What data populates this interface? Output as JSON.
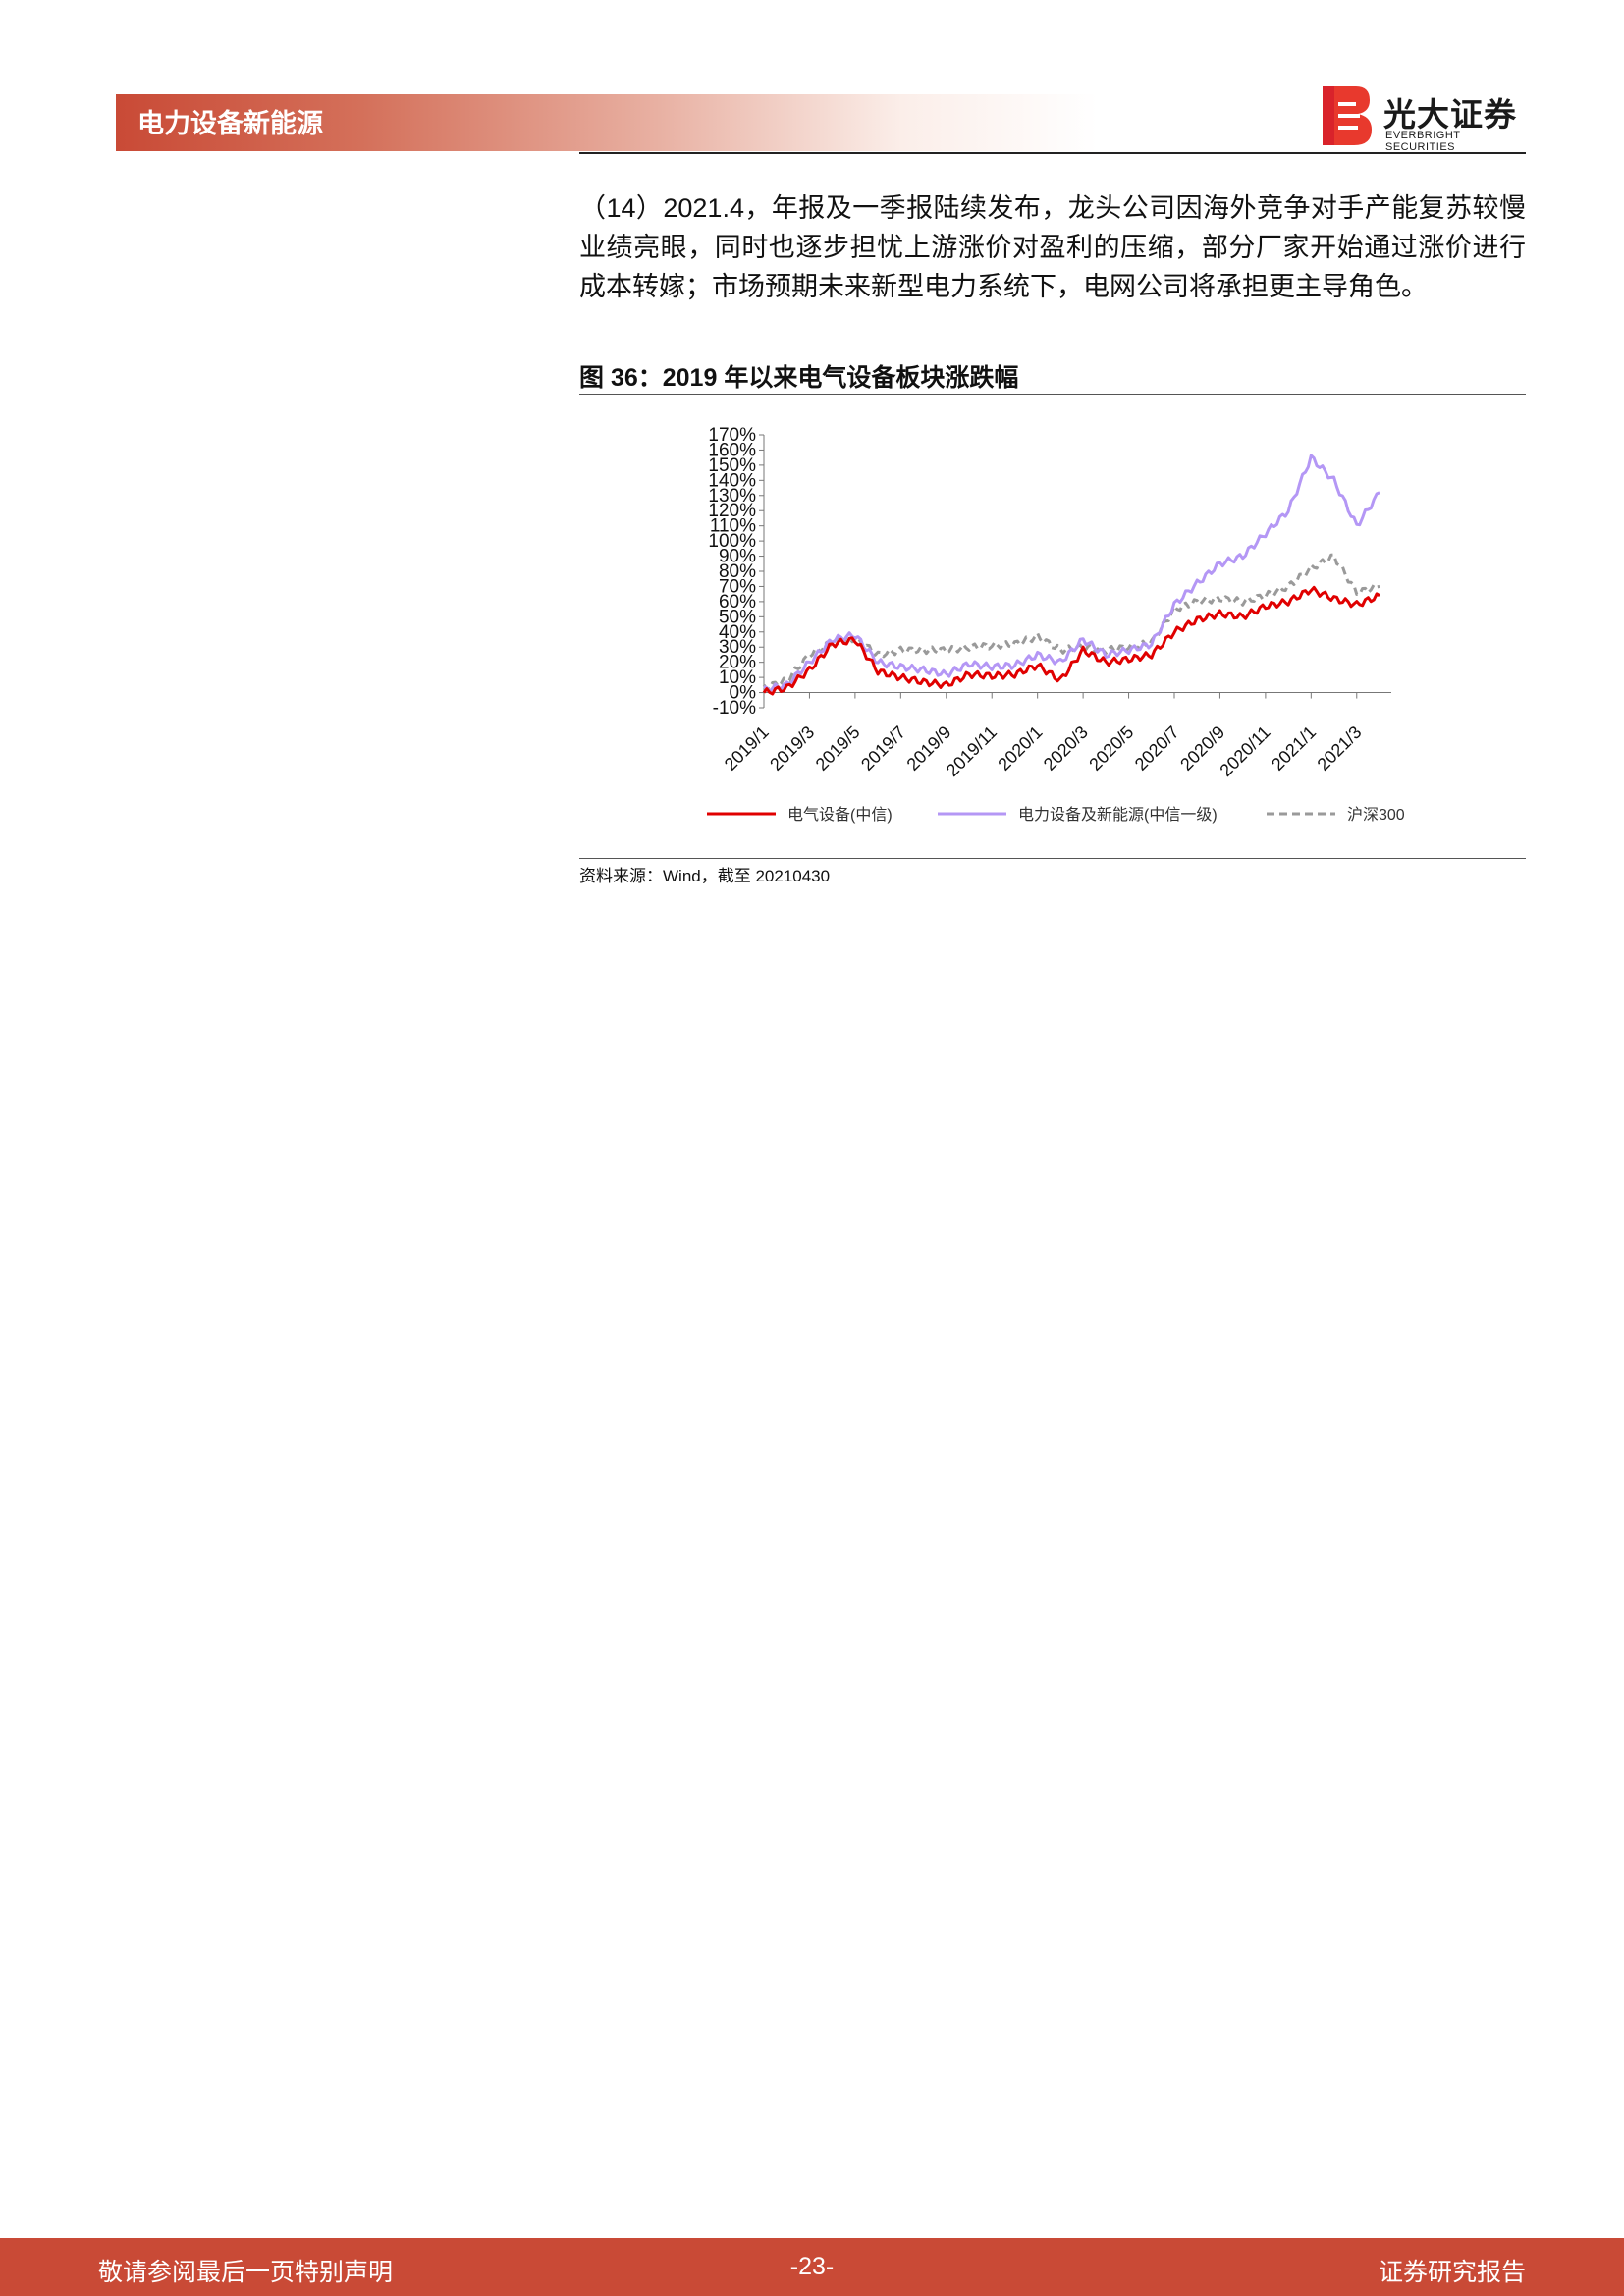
{
  "header": {
    "section_title": "电力设备新能源",
    "logo_cn": "光大证券",
    "logo_en": "EVERBRIGHT SECURITIES",
    "accent_color": "#c94a36"
  },
  "body": {
    "paragraph": "（14）2021.4，年报及一季报陆续发布，龙头公司因海外竞争对手产能复苏较慢业绩亮眼，同时也逐步担忧上游涨价对盈利的压缩，部分厂家开始通过涨价进行成本转嫁；市场预期未来新型电力系统下，电网公司将承担更主导角色。"
  },
  "figure": {
    "title": "图 36：2019 年以来电气设备板块涨跌幅",
    "source": "资料来源：Wind，截至 20210430"
  },
  "chart_data": {
    "type": "line",
    "title": "",
    "xlabel": "",
    "ylabel": "",
    "ylim": [
      -10,
      170
    ],
    "y_ticks": [
      "-10%",
      "0%",
      "10%",
      "20%",
      "30%",
      "40%",
      "50%",
      "60%",
      "70%",
      "80%",
      "90%",
      "100%",
      "110%",
      "120%",
      "130%",
      "140%",
      "150%",
      "160%",
      "170%"
    ],
    "x_ticks": [
      "2019/1",
      "2019/3",
      "2019/5",
      "2019/7",
      "2019/9",
      "2019/11",
      "2020/1",
      "2020/3",
      "2020/5",
      "2020/7",
      "2020/9",
      "2020/11",
      "2021/1",
      "2021/3"
    ],
    "x": [
      "2019/1",
      "2019/2",
      "2019/3",
      "2019/4",
      "2019/5",
      "2019/6",
      "2019/7",
      "2019/8",
      "2019/9",
      "2019/10",
      "2019/11",
      "2019/12",
      "2020/1",
      "2020/2",
      "2020/3",
      "2020/4",
      "2020/5",
      "2020/6",
      "2020/7",
      "2020/8",
      "2020/9",
      "2020/10",
      "2020/11",
      "2020/12",
      "2021/1",
      "2021/2",
      "2021/3",
      "2021/4"
    ],
    "legend_position": "bottom",
    "grid": false,
    "series": [
      {
        "name": "电气设备(中信)",
        "color": "#e00000",
        "style": "solid",
        "values": [
          0,
          3,
          15,
          32,
          35,
          14,
          10,
          7,
          5,
          12,
          11,
          12,
          18,
          8,
          28,
          20,
          22,
          25,
          40,
          48,
          52,
          50,
          57,
          60,
          68,
          62,
          58,
          64
        ]
      },
      {
        "name": "电力设备及新能源(中信一级)",
        "color": "#b497f5",
        "style": "solid",
        "values": [
          2,
          5,
          20,
          35,
          38,
          20,
          17,
          15,
          12,
          19,
          17,
          18,
          25,
          20,
          35,
          25,
          28,
          32,
          58,
          72,
          85,
          90,
          105,
          120,
          155,
          140,
          110,
          132
        ]
      },
      {
        "name": "沪深300",
        "color": "#9a9a9a",
        "style": "dashed",
        "values": [
          3,
          8,
          25,
          33,
          36,
          25,
          28,
          28,
          28,
          30,
          31,
          32,
          37,
          28,
          30,
          28,
          30,
          33,
          55,
          60,
          62,
          60,
          64,
          70,
          82,
          90,
          66,
          70
        ]
      }
    ]
  },
  "footer": {
    "left": "敬请参阅最后一页特别声明",
    "page": "-23-",
    "right": "证券研究报告"
  }
}
